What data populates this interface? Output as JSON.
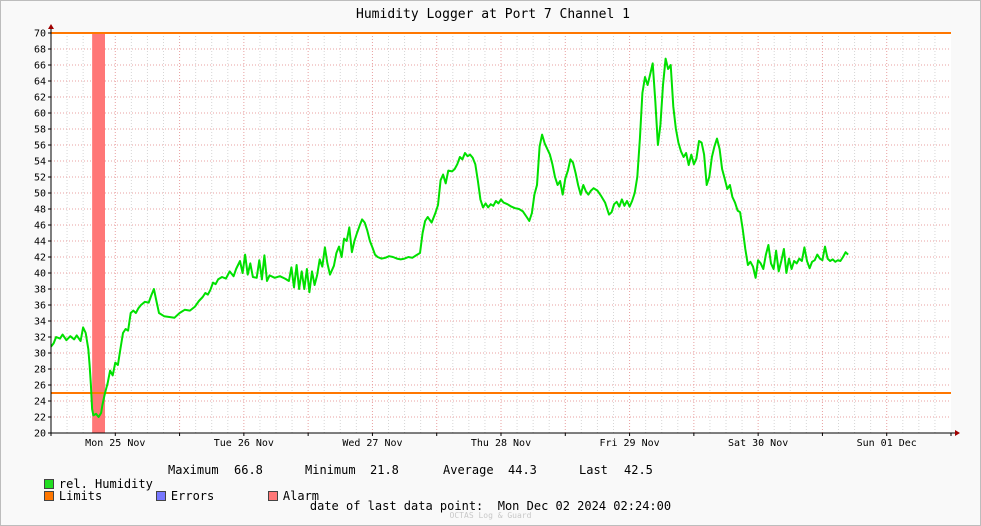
{
  "chart_data": {
    "type": "line",
    "title": "Humidity Logger at Port 7 Channel 1",
    "ylim": [
      20,
      70
    ],
    "y_ticks": [
      20,
      22,
      24,
      26,
      28,
      30,
      32,
      34,
      36,
      38,
      40,
      42,
      44,
      46,
      48,
      50,
      52,
      54,
      56,
      58,
      60,
      62,
      64,
      66,
      68,
      70
    ],
    "x_range_days": [
      0,
      7
    ],
    "x_ticks": [
      {
        "label": "Mon 25 Nov",
        "day": 0.5
      },
      {
        "label": "Tue 26 Nov",
        "day": 1.5
      },
      {
        "label": "Wed 27 Nov",
        "day": 2.5
      },
      {
        "label": "Thu 28 Nov",
        "day": 3.5
      },
      {
        "label": "Fri 29 Nov",
        "day": 4.5
      },
      {
        "label": "Sat 30 Nov",
        "day": 5.5
      },
      {
        "label": "Sun 01 Dec",
        "day": 6.5
      }
    ],
    "limits": [
      25,
      70
    ],
    "alarm_band": [
      0.32,
      0.42
    ],
    "series": [
      {
        "name": "rel. Humidity",
        "color": "#00e000",
        "points": [
          [
            0.0,
            30.8
          ],
          [
            0.02,
            31.2
          ],
          [
            0.04,
            32.0
          ],
          [
            0.07,
            31.8
          ],
          [
            0.09,
            32.3
          ],
          [
            0.12,
            31.6
          ],
          [
            0.15,
            32.1
          ],
          [
            0.18,
            31.7
          ],
          [
            0.2,
            32.2
          ],
          [
            0.23,
            31.5
          ],
          [
            0.25,
            33.2
          ],
          [
            0.27,
            32.5
          ],
          [
            0.29,
            30.5
          ],
          [
            0.3,
            28.5
          ],
          [
            0.31,
            26.0
          ],
          [
            0.32,
            23.0
          ],
          [
            0.33,
            22.2
          ],
          [
            0.35,
            22.4
          ],
          [
            0.37,
            22.0
          ],
          [
            0.39,
            22.5
          ],
          [
            0.4,
            23.5
          ],
          [
            0.42,
            25.0
          ],
          [
            0.44,
            26.2
          ],
          [
            0.46,
            27.8
          ],
          [
            0.48,
            27.2
          ],
          [
            0.5,
            28.8
          ],
          [
            0.52,
            28.5
          ],
          [
            0.54,
            30.5
          ],
          [
            0.56,
            32.5
          ],
          [
            0.58,
            33.0
          ],
          [
            0.6,
            32.8
          ],
          [
            0.62,
            35.0
          ],
          [
            0.64,
            35.3
          ],
          [
            0.66,
            35.0
          ],
          [
            0.68,
            35.6
          ],
          [
            0.7,
            36.0
          ],
          [
            0.73,
            36.4
          ],
          [
            0.76,
            36.3
          ],
          [
            0.78,
            37.2
          ],
          [
            0.8,
            38.0
          ],
          [
            0.82,
            36.5
          ],
          [
            0.84,
            35.0
          ],
          [
            0.88,
            34.6
          ],
          [
            0.92,
            34.5
          ],
          [
            0.96,
            34.4
          ],
          [
            1.0,
            35.0
          ],
          [
            1.04,
            35.4
          ],
          [
            1.08,
            35.3
          ],
          [
            1.12,
            35.8
          ],
          [
            1.15,
            36.5
          ],
          [
            1.18,
            37.0
          ],
          [
            1.2,
            37.5
          ],
          [
            1.22,
            37.3
          ],
          [
            1.24,
            37.9
          ],
          [
            1.26,
            38.8
          ],
          [
            1.28,
            38.6
          ],
          [
            1.3,
            39.2
          ],
          [
            1.33,
            39.5
          ],
          [
            1.36,
            39.3
          ],
          [
            1.39,
            40.2
          ],
          [
            1.42,
            39.6
          ],
          [
            1.44,
            40.5
          ],
          [
            1.47,
            41.5
          ],
          [
            1.49,
            40.0
          ],
          [
            1.51,
            42.3
          ],
          [
            1.53,
            39.8
          ],
          [
            1.55,
            41.2
          ],
          [
            1.57,
            39.5
          ],
          [
            1.6,
            39.4
          ],
          [
            1.62,
            41.6
          ],
          [
            1.64,
            39.2
          ],
          [
            1.66,
            42.2
          ],
          [
            1.68,
            39.0
          ],
          [
            1.7,
            39.7
          ],
          [
            1.74,
            39.4
          ],
          [
            1.78,
            39.6
          ],
          [
            1.82,
            39.3
          ],
          [
            1.85,
            39.0
          ],
          [
            1.87,
            40.7
          ],
          [
            1.89,
            38.2
          ],
          [
            1.91,
            41.0
          ],
          [
            1.93,
            38.0
          ],
          [
            1.95,
            40.2
          ],
          [
            1.97,
            38.0
          ],
          [
            1.99,
            40.5
          ],
          [
            2.01,
            37.6
          ],
          [
            2.03,
            40.2
          ],
          [
            2.05,
            38.5
          ],
          [
            2.07,
            39.7
          ],
          [
            2.09,
            41.7
          ],
          [
            2.11,
            40.8
          ],
          [
            2.13,
            43.2
          ],
          [
            2.15,
            41.2
          ],
          [
            2.17,
            39.8
          ],
          [
            2.2,
            40.9
          ],
          [
            2.22,
            42.5
          ],
          [
            2.24,
            43.3
          ],
          [
            2.26,
            42.0
          ],
          [
            2.28,
            44.3
          ],
          [
            2.3,
            44.0
          ],
          [
            2.32,
            45.7
          ],
          [
            2.34,
            42.6
          ],
          [
            2.36,
            44.0
          ],
          [
            2.38,
            45.0
          ],
          [
            2.4,
            45.9
          ],
          [
            2.42,
            46.7
          ],
          [
            2.44,
            46.3
          ],
          [
            2.46,
            45.3
          ],
          [
            2.48,
            44.0
          ],
          [
            2.5,
            43.2
          ],
          [
            2.52,
            42.3
          ],
          [
            2.54,
            42.0
          ],
          [
            2.57,
            41.8
          ],
          [
            2.6,
            41.9
          ],
          [
            2.63,
            42.1
          ],
          [
            2.66,
            42.0
          ],
          [
            2.69,
            41.8
          ],
          [
            2.72,
            41.7
          ],
          [
            2.75,
            41.8
          ],
          [
            2.78,
            42.0
          ],
          [
            2.81,
            41.9
          ],
          [
            2.84,
            42.2
          ],
          [
            2.87,
            42.5
          ],
          [
            2.89,
            45.0
          ],
          [
            2.91,
            46.5
          ],
          [
            2.93,
            47.0
          ],
          [
            2.96,
            46.3
          ],
          [
            2.99,
            47.5
          ],
          [
            3.01,
            48.5
          ],
          [
            3.03,
            51.6
          ],
          [
            3.05,
            52.3
          ],
          [
            3.07,
            51.2
          ],
          [
            3.09,
            52.8
          ],
          [
            3.12,
            52.7
          ],
          [
            3.14,
            53.0
          ],
          [
            3.16,
            53.6
          ],
          [
            3.18,
            54.5
          ],
          [
            3.2,
            54.2
          ],
          [
            3.22,
            55.0
          ],
          [
            3.24,
            54.6
          ],
          [
            3.26,
            54.8
          ],
          [
            3.28,
            54.4
          ],
          [
            3.3,
            53.6
          ],
          [
            3.32,
            51.5
          ],
          [
            3.34,
            49.2
          ],
          [
            3.36,
            48.2
          ],
          [
            3.38,
            48.7
          ],
          [
            3.4,
            48.2
          ],
          [
            3.42,
            48.6
          ],
          [
            3.44,
            48.4
          ],
          [
            3.46,
            49.0
          ],
          [
            3.48,
            48.7
          ],
          [
            3.5,
            49.2
          ],
          [
            3.52,
            48.8
          ],
          [
            3.55,
            48.6
          ],
          [
            3.58,
            48.3
          ],
          [
            3.61,
            48.1
          ],
          [
            3.64,
            48.0
          ],
          [
            3.67,
            47.7
          ],
          [
            3.7,
            47.0
          ],
          [
            3.72,
            46.5
          ],
          [
            3.74,
            47.5
          ],
          [
            3.76,
            49.8
          ],
          [
            3.78,
            51.0
          ],
          [
            3.8,
            55.8
          ],
          [
            3.82,
            57.3
          ],
          [
            3.84,
            56.2
          ],
          [
            3.86,
            55.5
          ],
          [
            3.88,
            54.8
          ],
          [
            3.9,
            53.6
          ],
          [
            3.92,
            52.0
          ],
          [
            3.94,
            51.0
          ],
          [
            3.96,
            51.5
          ],
          [
            3.98,
            49.8
          ],
          [
            4.0,
            51.8
          ],
          [
            4.02,
            52.8
          ],
          [
            4.04,
            54.2
          ],
          [
            4.06,
            53.8
          ],
          [
            4.08,
            52.5
          ],
          [
            4.1,
            51.0
          ],
          [
            4.12,
            49.8
          ],
          [
            4.14,
            51.0
          ],
          [
            4.16,
            50.2
          ],
          [
            4.18,
            49.8
          ],
          [
            4.2,
            50.3
          ],
          [
            4.22,
            50.6
          ],
          [
            4.25,
            50.3
          ],
          [
            4.28,
            49.6
          ],
          [
            4.31,
            48.8
          ],
          [
            4.34,
            47.3
          ],
          [
            4.36,
            47.6
          ],
          [
            4.38,
            48.6
          ],
          [
            4.4,
            48.9
          ],
          [
            4.42,
            48.3
          ],
          [
            4.44,
            49.2
          ],
          [
            4.46,
            48.4
          ],
          [
            4.48,
            49.0
          ],
          [
            4.5,
            48.3
          ],
          [
            4.52,
            49.0
          ],
          [
            4.54,
            50.0
          ],
          [
            4.56,
            52.0
          ],
          [
            4.58,
            56.8
          ],
          [
            4.6,
            62.5
          ],
          [
            4.62,
            64.5
          ],
          [
            4.64,
            63.5
          ],
          [
            4.66,
            64.8
          ],
          [
            4.68,
            66.2
          ],
          [
            4.7,
            61.5
          ],
          [
            4.72,
            56.0
          ],
          [
            4.74,
            58.5
          ],
          [
            4.76,
            63.5
          ],
          [
            4.78,
            66.8
          ],
          [
            4.8,
            65.5
          ],
          [
            4.82,
            66.0
          ],
          [
            4.84,
            60.8
          ],
          [
            4.86,
            58.0
          ],
          [
            4.88,
            56.3
          ],
          [
            4.9,
            55.2
          ],
          [
            4.92,
            54.5
          ],
          [
            4.94,
            55.0
          ],
          [
            4.96,
            53.5
          ],
          [
            4.98,
            54.8
          ],
          [
            5.0,
            53.6
          ],
          [
            5.02,
            54.3
          ],
          [
            5.04,
            56.5
          ],
          [
            5.06,
            56.3
          ],
          [
            5.08,
            54.8
          ],
          [
            5.1,
            51.0
          ],
          [
            5.12,
            52.0
          ],
          [
            5.14,
            54.5
          ],
          [
            5.16,
            55.8
          ],
          [
            5.18,
            56.8
          ],
          [
            5.2,
            55.5
          ],
          [
            5.22,
            53.0
          ],
          [
            5.24,
            51.8
          ],
          [
            5.26,
            50.5
          ],
          [
            5.28,
            51.0
          ],
          [
            5.3,
            49.5
          ],
          [
            5.32,
            48.8
          ],
          [
            5.34,
            47.8
          ],
          [
            5.36,
            47.6
          ],
          [
            5.38,
            45.5
          ],
          [
            5.4,
            43.0
          ],
          [
            5.42,
            41.0
          ],
          [
            5.44,
            41.4
          ],
          [
            5.46,
            40.8
          ],
          [
            5.48,
            39.4
          ],
          [
            5.5,
            41.6
          ],
          [
            5.52,
            41.2
          ],
          [
            5.54,
            40.5
          ],
          [
            5.56,
            42.3
          ],
          [
            5.58,
            43.5
          ],
          [
            5.6,
            41.2
          ],
          [
            5.62,
            40.5
          ],
          [
            5.64,
            42.8
          ],
          [
            5.66,
            40.2
          ],
          [
            5.68,
            41.5
          ],
          [
            5.7,
            43.0
          ],
          [
            5.72,
            40.0
          ],
          [
            5.74,
            41.8
          ],
          [
            5.76,
            40.5
          ],
          [
            5.78,
            41.5
          ],
          [
            5.8,
            41.2
          ],
          [
            5.82,
            41.8
          ],
          [
            5.84,
            41.5
          ],
          [
            5.86,
            43.2
          ],
          [
            5.88,
            41.5
          ],
          [
            5.9,
            40.6
          ],
          [
            5.92,
            41.4
          ],
          [
            5.94,
            41.6
          ],
          [
            5.96,
            42.3
          ],
          [
            5.98,
            41.8
          ],
          [
            6.0,
            41.6
          ],
          [
            6.02,
            43.3
          ],
          [
            6.04,
            41.8
          ],
          [
            6.06,
            41.5
          ],
          [
            6.08,
            41.7
          ],
          [
            6.1,
            41.4
          ],
          [
            6.12,
            41.6
          ],
          [
            6.14,
            41.5
          ],
          [
            6.16,
            42.0
          ],
          [
            6.18,
            42.6
          ],
          [
            6.2,
            42.3
          ]
        ]
      }
    ]
  },
  "legend": {
    "humidity_label": "rel. Humidity",
    "limits_label": "Limits",
    "errors_label": "Errors",
    "alarm_label": "Alarm",
    "colors": {
      "humidity": "#22dd22",
      "limits": "#ff7700",
      "errors": "#7777ff",
      "alarm": "#ff7777"
    }
  },
  "stats": {
    "maximum_label": "Maximum",
    "maximum_value": "66.8",
    "minimum_label": "Minimum",
    "minimum_value": "21.8",
    "average_label": "Average",
    "average_value": "44.3",
    "last_label": "Last",
    "last_value": "42.5"
  },
  "footer": {
    "date_text": "date of last data point:  Mon Dec 02 2024 02:24:00",
    "watermark": "OCTAS Log & Guard"
  }
}
